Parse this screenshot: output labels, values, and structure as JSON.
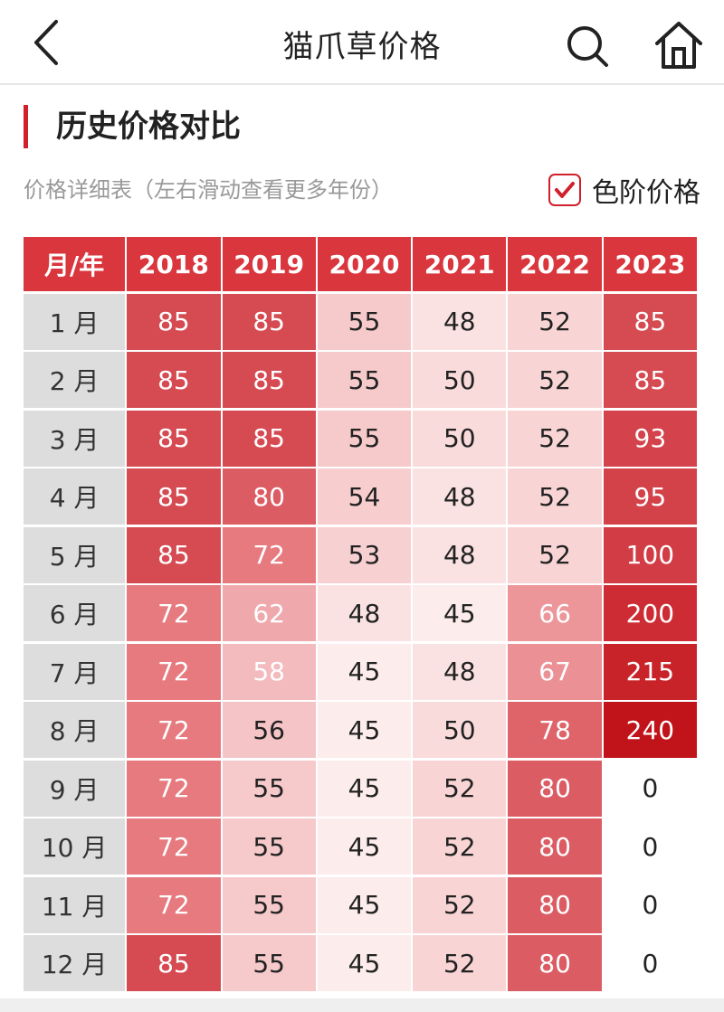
{
  "nav": {
    "title": "猫爪草价格"
  },
  "section": {
    "title": "历史价格对比"
  },
  "subtitle": "价格详细表（左右滑动查看更多年份）",
  "toggle": {
    "label": "色阶价格",
    "checked": true
  },
  "colors": {
    "accent": "#d0202a",
    "header_bg": "#d9363e",
    "month_bg": "#dddddd"
  },
  "table": {
    "corner": "月/年",
    "years": [
      "2018",
      "2019",
      "2020",
      "2021",
      "2022",
      "2023"
    ],
    "rows": [
      {
        "month": "1 月",
        "values": [
          85,
          85,
          55,
          48,
          52,
          85
        ]
      },
      {
        "month": "2 月",
        "values": [
          85,
          85,
          55,
          50,
          52,
          85
        ]
      },
      {
        "month": "3 月",
        "values": [
          85,
          85,
          55,
          50,
          52,
          93
        ]
      },
      {
        "month": "4 月",
        "values": [
          85,
          80,
          54,
          48,
          52,
          95
        ]
      },
      {
        "month": "5 月",
        "values": [
          85,
          72,
          53,
          48,
          52,
          100
        ]
      },
      {
        "month": "6 月",
        "values": [
          72,
          62,
          48,
          45,
          66,
          200
        ]
      },
      {
        "month": "7 月",
        "values": [
          72,
          58,
          45,
          48,
          67,
          215
        ]
      },
      {
        "month": "8 月",
        "values": [
          72,
          56,
          45,
          50,
          78,
          240
        ]
      },
      {
        "month": "9 月",
        "values": [
          72,
          55,
          45,
          52,
          80,
          0
        ]
      },
      {
        "month": "10 月",
        "values": [
          72,
          55,
          45,
          52,
          80,
          0
        ]
      },
      {
        "month": "11 月",
        "values": [
          72,
          55,
          45,
          52,
          80,
          0
        ]
      },
      {
        "month": "12 月",
        "values": [
          85,
          55,
          45,
          52,
          80,
          0
        ]
      }
    ]
  }
}
